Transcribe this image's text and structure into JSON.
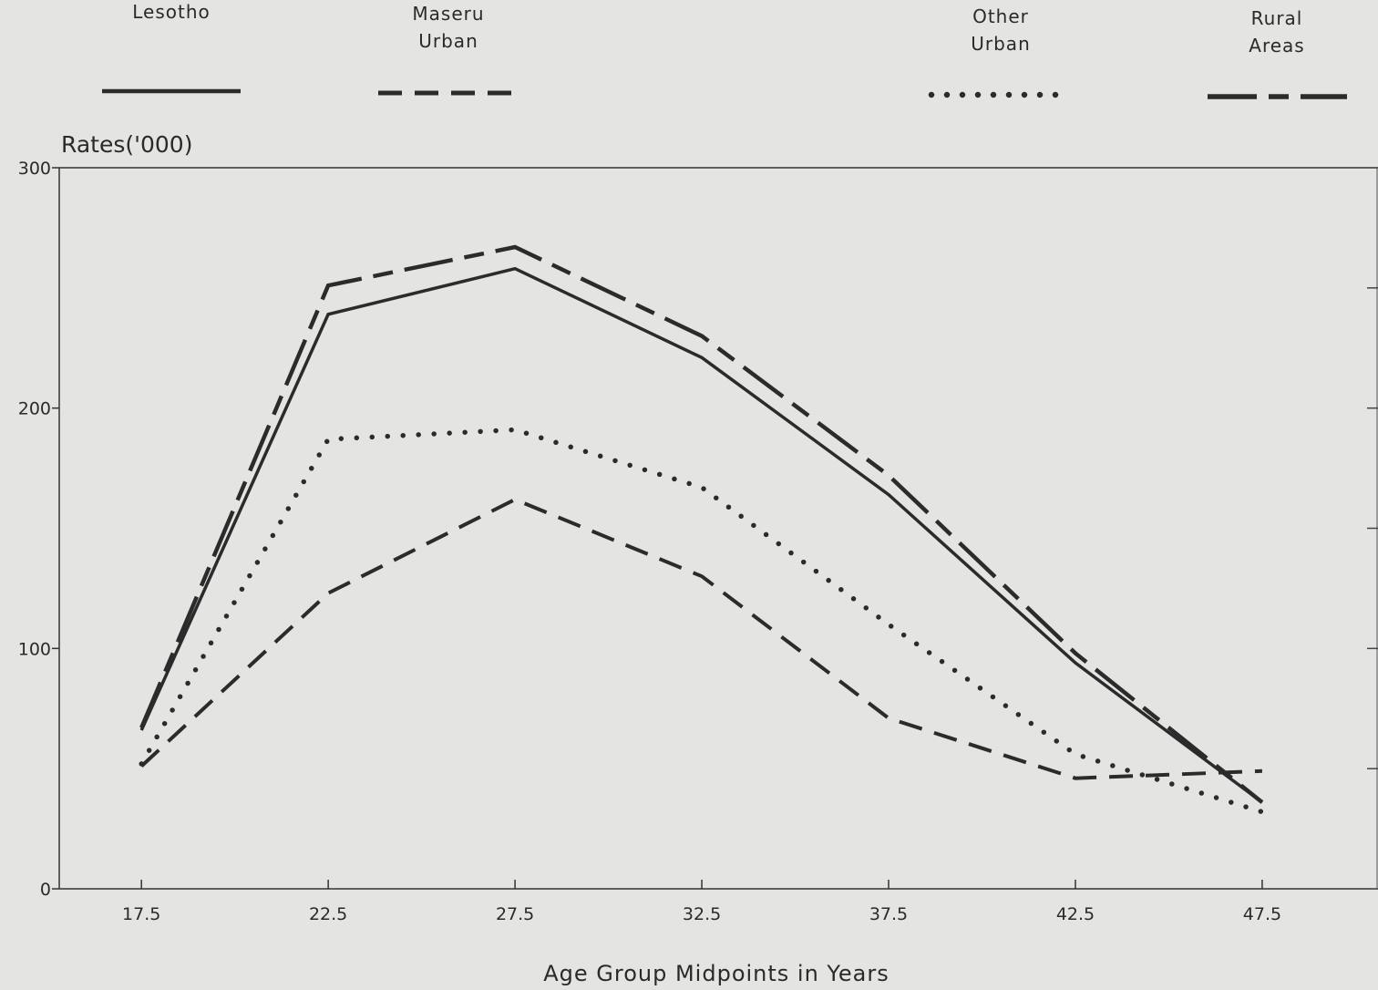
{
  "chart_data": {
    "type": "line",
    "ylabel": "Rates('000)",
    "xlabel": "Age Group Midpoints in Years",
    "x": [
      17.5,
      22.5,
      27.5,
      32.5,
      37.5,
      42.5,
      47.5
    ],
    "x_tick_labels": [
      "17.5",
      "22.5",
      "27.5",
      "32.5",
      "37.5",
      "42.5",
      "47.5"
    ],
    "y_ticks": [
      0,
      100,
      200,
      300
    ],
    "y_tick_labels": [
      "0",
      "100",
      "200",
      "300"
    ],
    "ylim": [
      0,
      300
    ],
    "xlim": [
      15.3,
      50.6
    ],
    "grid": false,
    "legend_position": "top",
    "series": [
      {
        "name": "Lesotho",
        "values": [
          66,
          239,
          258,
          221,
          164,
          94,
          36
        ],
        "style": "solid",
        "color": "#2b2b2b"
      },
      {
        "name": "Maseru Urban",
        "values": [
          51,
          123,
          162,
          130,
          71,
          46,
          49
        ],
        "style": "dashed",
        "color": "#2b2b2b"
      },
      {
        "name": "Other Urban",
        "values": [
          52,
          187,
          191,
          167,
          110,
          56,
          32
        ],
        "style": "dotted",
        "color": "#2b2b2b"
      },
      {
        "name": "Rural Areas",
        "values": [
          67,
          251,
          267,
          230,
          172,
          98,
          36
        ],
        "style": "longdash",
        "color": "#2b2b2b"
      }
    ],
    "legend_labels": [
      [
        "Lesotho"
      ],
      [
        "Maseru",
        "Urban"
      ],
      [
        "Other",
        "Urban"
      ],
      [
        "Rural",
        "Areas"
      ]
    ]
  }
}
